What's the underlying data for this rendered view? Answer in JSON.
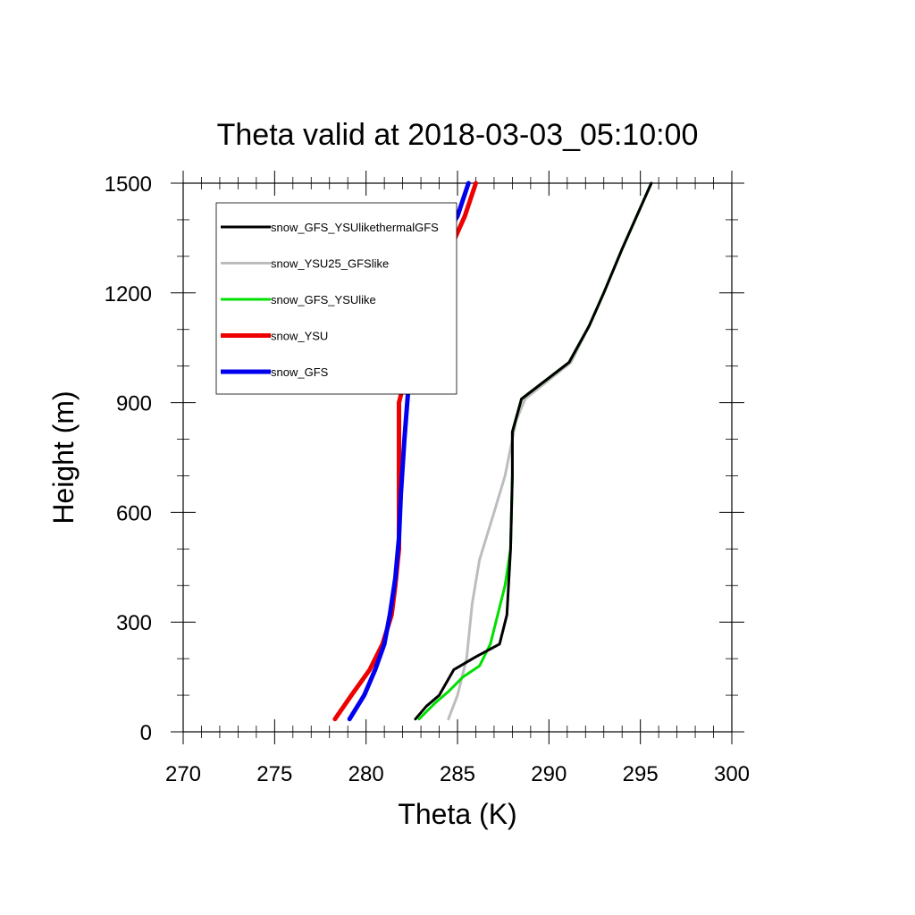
{
  "chart_data": {
    "type": "line",
    "title": "Theta valid at 2018-03-03_05:10:00",
    "xlabel": "Theta (K)",
    "ylabel": "Height (m)",
    "xlim": [
      270,
      300
    ],
    "ylim": [
      0,
      1500
    ],
    "xticks": [
      "270",
      "275",
      "280",
      "285",
      "290",
      "295",
      "300"
    ],
    "yticks": [
      "0",
      "300",
      "600",
      "900",
      "1200",
      "1500"
    ],
    "grid": false,
    "legend_position": "top-left",
    "series": [
      {
        "name": "snow_GFS_YSUlikethermalGFS",
        "color": "#000000",
        "points": [
          [
            282.7,
            35
          ],
          [
            283.3,
            70
          ],
          [
            284.0,
            100
          ],
          [
            284.8,
            170
          ],
          [
            286.0,
            205
          ],
          [
            287.3,
            240
          ],
          [
            287.7,
            320
          ],
          [
            287.9,
            500
          ],
          [
            288.0,
            700
          ],
          [
            288.0,
            820
          ],
          [
            288.5,
            910
          ],
          [
            291.1,
            1010
          ],
          [
            292.2,
            1110
          ],
          [
            293.0,
            1200
          ],
          [
            294.0,
            1320
          ],
          [
            295.6,
            1500
          ]
        ]
      },
      {
        "name": "snow_YSU25_GFSlike",
        "color": "#bdbdbd",
        "points": [
          [
            284.5,
            35
          ],
          [
            285.0,
            100
          ],
          [
            285.5,
            200
          ],
          [
            285.8,
            350
          ],
          [
            286.2,
            470
          ],
          [
            287.0,
            600
          ],
          [
            287.6,
            700
          ],
          [
            288.2,
            850
          ],
          [
            288.7,
            910
          ],
          [
            291.2,
            1010
          ],
          [
            292.2,
            1110
          ],
          [
            293.0,
            1200
          ],
          [
            294.0,
            1320
          ],
          [
            295.6,
            1500
          ]
        ]
      },
      {
        "name": "snow_GFS_YSUlike",
        "color": "#00e000",
        "points": [
          [
            282.9,
            35
          ],
          [
            283.8,
            80
          ],
          [
            284.5,
            110
          ],
          [
            285.3,
            150
          ],
          [
            286.2,
            180
          ],
          [
            286.8,
            240
          ],
          [
            287.2,
            320
          ],
          [
            287.6,
            400
          ],
          [
            287.9,
            500
          ],
          [
            288.0,
            700
          ],
          [
            288.0,
            820
          ],
          [
            288.5,
            910
          ],
          [
            291.1,
            1010
          ],
          [
            292.2,
            1110
          ],
          [
            293.0,
            1200
          ],
          [
            294.0,
            1320
          ],
          [
            295.6,
            1500
          ]
        ]
      },
      {
        "name": "snow_YSU",
        "color": "#ee0000",
        "points": [
          [
            278.3,
            35
          ],
          [
            279.2,
            100
          ],
          [
            280.2,
            170
          ],
          [
            280.9,
            240
          ],
          [
            281.4,
            320
          ],
          [
            281.6,
            400
          ],
          [
            281.8,
            500
          ],
          [
            281.8,
            600
          ],
          [
            281.8,
            700
          ],
          [
            281.8,
            900
          ],
          [
            282.3,
            1000
          ],
          [
            282.7,
            1090
          ],
          [
            283.4,
            1200
          ],
          [
            284.6,
            1320
          ],
          [
            285.4,
            1410
          ],
          [
            286.0,
            1500
          ]
        ]
      },
      {
        "name": "snow_GFS",
        "color": "#0000ee",
        "points": [
          [
            279.1,
            35
          ],
          [
            279.9,
            100
          ],
          [
            280.5,
            170
          ],
          [
            281.0,
            240
          ],
          [
            281.3,
            320
          ],
          [
            281.6,
            420
          ],
          [
            281.8,
            530
          ],
          [
            281.9,
            650
          ],
          [
            282.1,
            800
          ],
          [
            282.3,
            930
          ],
          [
            282.6,
            1090
          ],
          [
            283.0,
            1200
          ],
          [
            283.4,
            1300
          ],
          [
            284.4,
            1360
          ],
          [
            285.0,
            1410
          ],
          [
            285.6,
            1500
          ]
        ]
      }
    ]
  }
}
